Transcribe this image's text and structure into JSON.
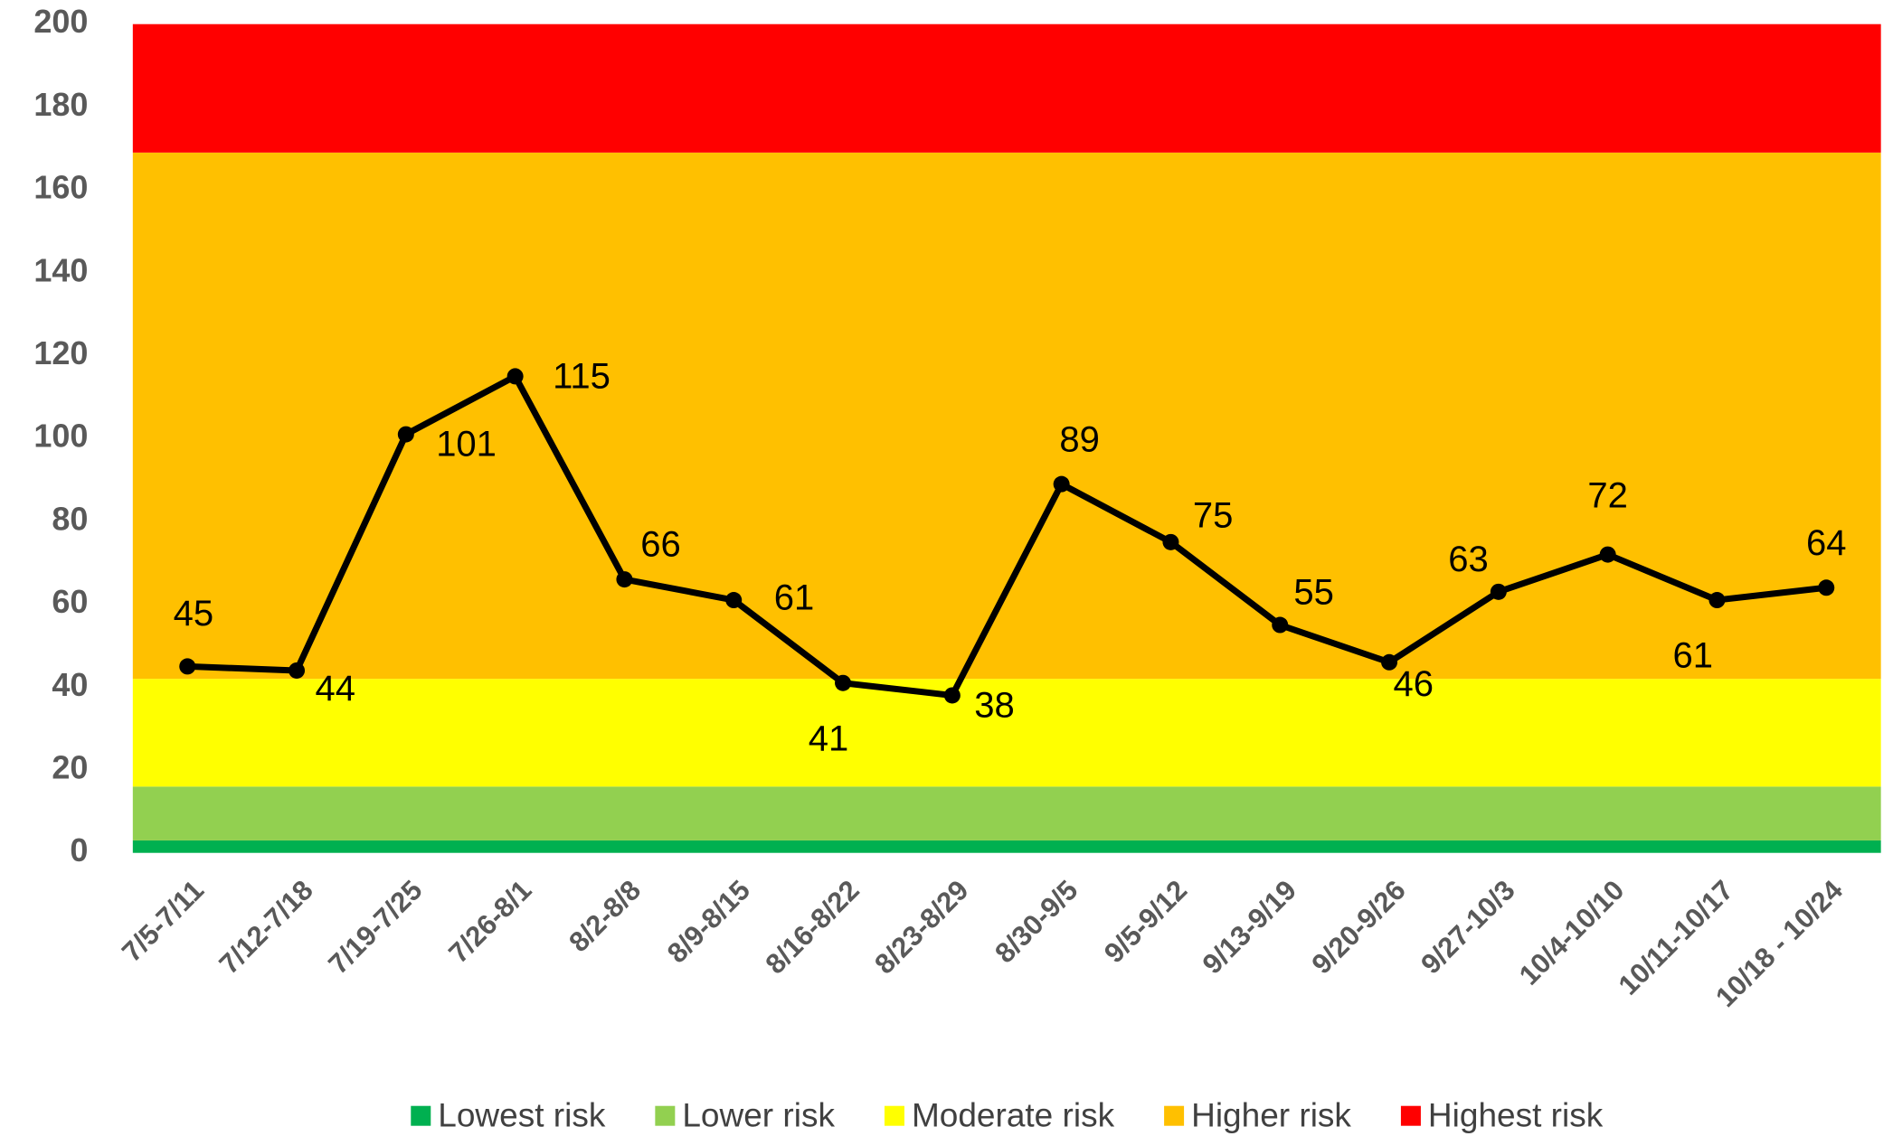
{
  "chart_data": {
    "type": "line",
    "categories": [
      "7/5-7/11",
      "7/12-7/18",
      "7/19-7/25",
      "7/26-8/1",
      "8/2-8/8",
      "8/9-8/15",
      "8/16-8/22",
      "8/23-8/29",
      "8/30-9/5",
      "9/5-9/12",
      "9/13-9/19",
      "9/20-9/26",
      "9/27-10/3",
      "10/4-10/10",
      "10/11-10/17",
      "10/18 - 10/24"
    ],
    "series": [
      {
        "color": "#000000",
        "values": [
          45,
          44,
          101,
          115,
          66,
          61,
          41,
          38,
          89,
          75,
          55,
          46,
          63,
          72,
          61,
          64
        ]
      }
    ],
    "bands": [
      {
        "name": "Lowest risk",
        "color": "#00b050",
        "value": 3
      },
      {
        "name": "Lower risk",
        "color": "#92d050",
        "value": 13
      },
      {
        "name": "Moderate risk",
        "color": "#ffff00",
        "value": 26
      },
      {
        "name": "Higher risk",
        "color": "#ffc000",
        "value": 127
      },
      {
        "name": "Highest risk",
        "color": "#ff0000",
        "value": 31
      }
    ],
    "ylim": [
      0,
      200
    ],
    "yticks": [
      0,
      20,
      40,
      60,
      80,
      100,
      120,
      140,
      160,
      180,
      200
    ],
    "legend": "bottom"
  }
}
